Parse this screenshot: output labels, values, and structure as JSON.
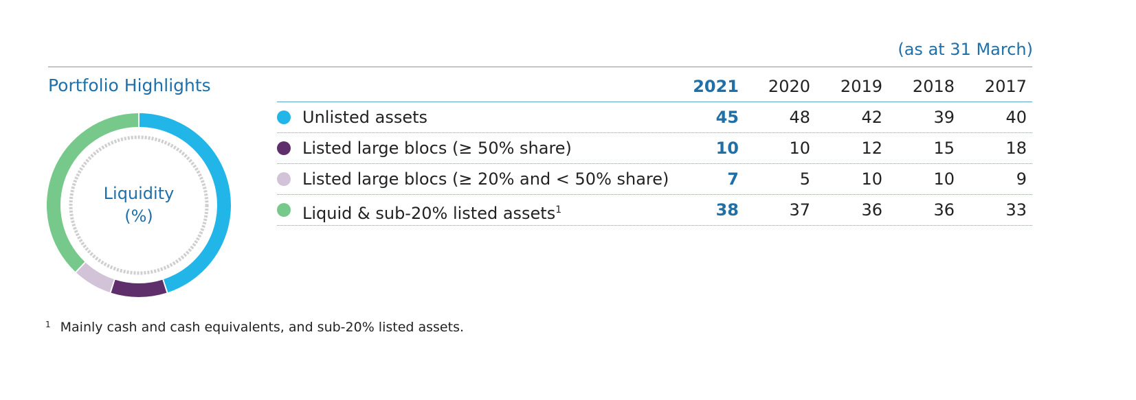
{
  "as_at": "(as at 31 March)",
  "section_title": "Portfolio Highlights",
  "donut_label_line1": "Liquidity",
  "donut_label_line2": "(%)",
  "years": [
    "2021",
    "2020",
    "2019",
    "2018",
    "2017"
  ],
  "colors": {
    "unlisted": "#22b5e8",
    "large50": "#5e2f6a",
    "large20": "#d2c3d8",
    "liquid": "#76c98a",
    "accent": "#1f6fa8"
  },
  "rows": [
    {
      "label": "Unlisted assets",
      "sup": "",
      "values": [
        "45",
        "48",
        "42",
        "39",
        "40"
      ],
      "color": "#22b5e8"
    },
    {
      "label": "Listed large blocs (≥ 50% share)",
      "sup": "",
      "values": [
        "10",
        "10",
        "12",
        "15",
        "18"
      ],
      "color": "#5e2f6a"
    },
    {
      "label": "Listed large blocs (≥ 20% and < 50% share)",
      "sup": "",
      "values": [
        "7",
        "5",
        "10",
        "10",
        "9"
      ],
      "color": "#d2c3d8"
    },
    {
      "label": "Liquid & sub-20% listed assets",
      "sup": "1",
      "values": [
        "38",
        "37",
        "36",
        "36",
        "33"
      ],
      "color": "#76c98a"
    }
  ],
  "footnote": {
    "number": "1",
    "text": "Mainly cash and cash equivalents, and sub-20% listed assets."
  },
  "chart_data": {
    "type": "pie",
    "variant": "donut",
    "categories": [
      "Unlisted assets",
      "Listed large blocs (≥ 50% share)",
      "Listed large blocs (≥ 20% and < 50% share)",
      "Liquid & sub-20% listed assets"
    ],
    "values": [
      45,
      10,
      7,
      38
    ],
    "colors": [
      "#22b5e8",
      "#5e2f6a",
      "#d2c3d8",
      "#76c98a"
    ],
    "year": "2021"
  }
}
